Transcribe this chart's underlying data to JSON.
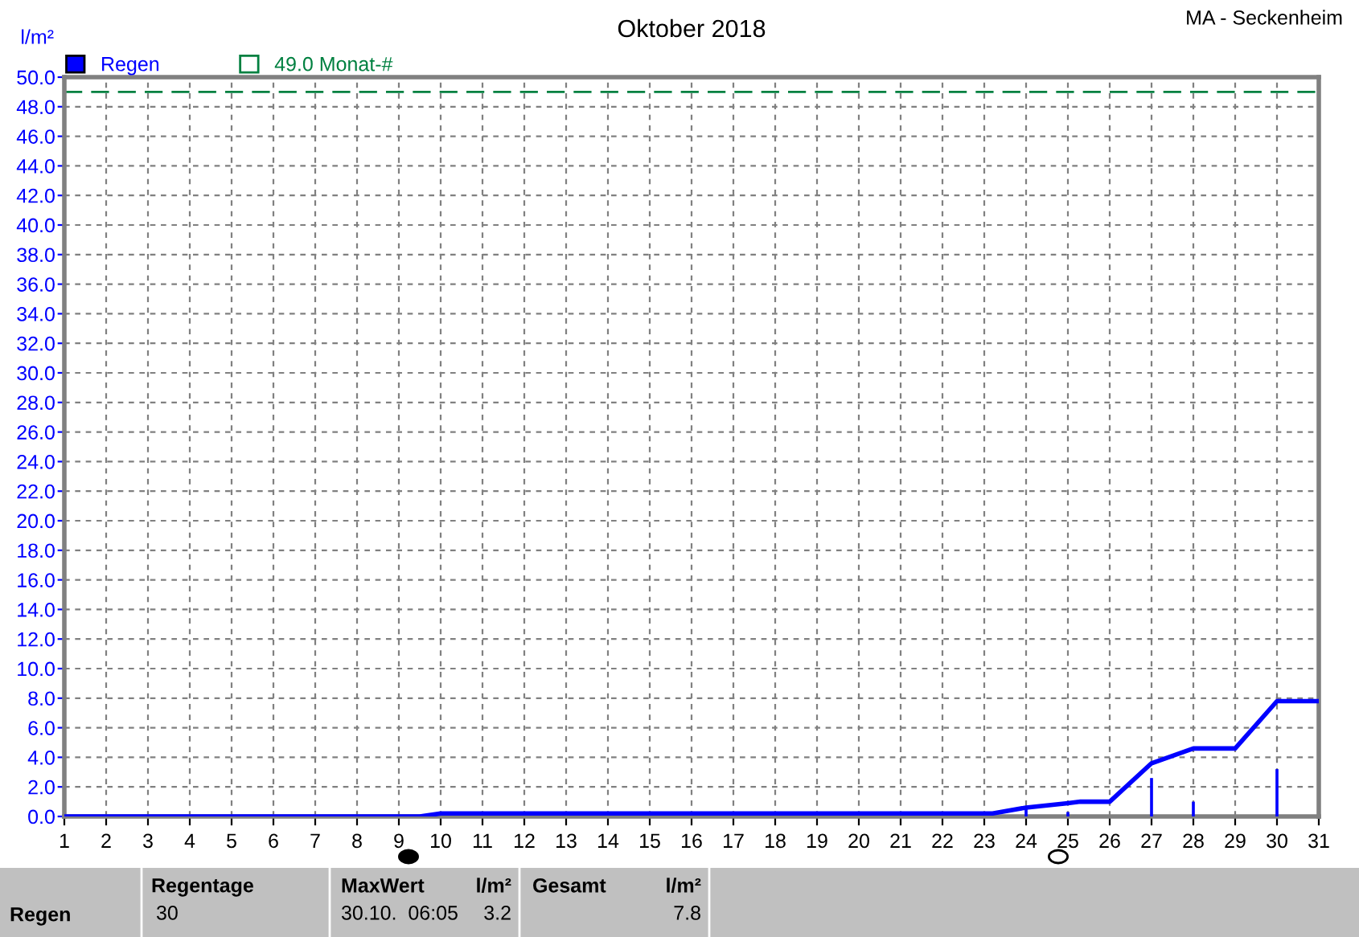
{
  "chart_data": {
    "type": "bar",
    "title": "Oktober 2018",
    "ylabel": "l/m²",
    "series": [
      {
        "name": "Regen",
        "color": "#0000ff",
        "x": [
          24,
          25,
          27,
          28,
          30
        ],
        "values": [
          0.5,
          0.3,
          2.6,
          1.0,
          3.2
        ]
      },
      {
        "type": "line",
        "color": "#0000ff",
        "x": [
          1,
          9.5,
          10,
          23.2,
          24,
          25,
          25.3,
          26,
          27,
          28,
          29,
          30,
          31
        ],
        "values": [
          0,
          0,
          0.2,
          0.2,
          0.6,
          0.9,
          1.0,
          1.0,
          3.6,
          4.6,
          4.6,
          7.8,
          7.8
        ]
      }
    ],
    "ref_lines": [
      {
        "axis": "y",
        "value": 49.0,
        "label": "49.0 Monat-#",
        "color": "#008040",
        "line_style": "dashed"
      }
    ],
    "xlim": [
      1,
      31
    ],
    "xticks": [
      1,
      2,
      3,
      4,
      5,
      6,
      7,
      8,
      9,
      10,
      11,
      12,
      13,
      14,
      15,
      16,
      17,
      18,
      19,
      20,
      21,
      22,
      23,
      24,
      25,
      26,
      27,
      28,
      29,
      30,
      31
    ],
    "ylim": [
      0,
      50
    ],
    "yticks": [
      {
        "value": 0,
        "label": "0.0"
      },
      {
        "value": 2,
        "label": "2.0"
      },
      {
        "value": 4,
        "label": "4.0"
      },
      {
        "value": 6,
        "label": "6.0"
      },
      {
        "value": 8,
        "label": "8.0"
      },
      {
        "value": 10,
        "label": "10.0"
      },
      {
        "value": 12,
        "label": "12.0"
      },
      {
        "value": 14,
        "label": "14.0"
      },
      {
        "value": 16,
        "label": "16.0"
      },
      {
        "value": 18,
        "label": "18.0"
      },
      {
        "value": 20,
        "label": "20.0"
      },
      {
        "value": 22,
        "label": "22.0"
      },
      {
        "value": 24,
        "label": "24.0"
      },
      {
        "value": 26,
        "label": "26.0"
      },
      {
        "value": 28,
        "label": "28.0"
      },
      {
        "value": 30,
        "label": "30.0"
      },
      {
        "value": 32,
        "label": "32.0"
      },
      {
        "value": 34,
        "label": "34.0"
      },
      {
        "value": 36,
        "label": "36.0"
      },
      {
        "value": 38,
        "label": "38.0"
      },
      {
        "value": 40,
        "label": "40.0"
      },
      {
        "value": 42,
        "label": "42.0"
      },
      {
        "value": 44,
        "label": "44.0"
      },
      {
        "value": 46,
        "label": "46.0"
      },
      {
        "value": 48,
        "label": "48.0"
      },
      {
        "value": 50,
        "label": "50.0"
      }
    ],
    "grid": true,
    "legend": "top left",
    "annotations": [
      "MA - Seckenheim",
      "Regen",
      "Regentage",
      "30",
      "MaxWert",
      "l/m²",
      "30.10.  06:05",
      "3.2",
      "Gesamt",
      "l/m²",
      "7.8"
    ]
  }
}
